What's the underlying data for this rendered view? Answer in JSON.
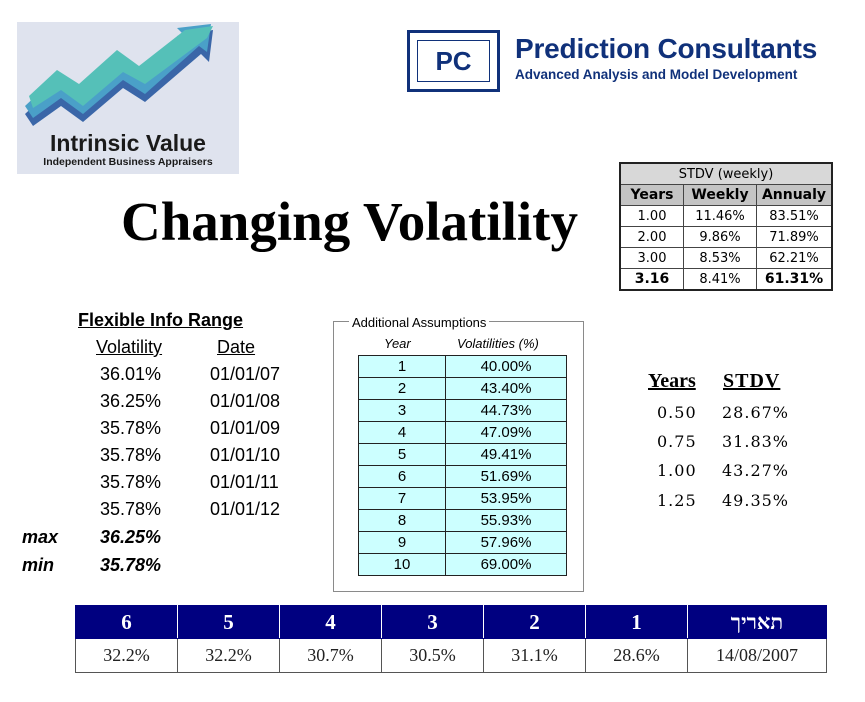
{
  "logo_intrinsic": {
    "title": "Intrinsic Value",
    "subtitle": "Independent Business Appraisers"
  },
  "logo_pc": {
    "mark": "PC",
    "name": "Prediction Consultants",
    "tagline": "Advanced Analysis and Model Development"
  },
  "title": "Changing Volatility",
  "stdv_weekly": {
    "caption": "STDV (weekly)",
    "headers": [
      "Years",
      "Weekly",
      "Annualy"
    ],
    "rows": [
      [
        "1.00",
        "11.46%",
        "83.51%"
      ],
      [
        "2.00",
        "9.86%",
        "71.89%"
      ],
      [
        "3.00",
        "8.53%",
        "62.21%"
      ],
      [
        "3.16",
        "8.41%",
        "61.31%"
      ]
    ]
  },
  "flexible_info": {
    "title": "Flexible Info Range",
    "volatility_header": "Volatility",
    "date_header": "Date",
    "rows": [
      {
        "vol": "36.01%",
        "date": "01/01/07"
      },
      {
        "vol": "36.25%",
        "date": "01/01/08"
      },
      {
        "vol": "35.78%",
        "date": "01/01/09"
      },
      {
        "vol": "35.78%",
        "date": "01/01/10"
      },
      {
        "vol": "35.78%",
        "date": "01/01/11"
      },
      {
        "vol": "35.78%",
        "date": "01/01/12"
      }
    ],
    "max_label": "max",
    "max_value": "36.25%",
    "min_label": "min",
    "min_value": "35.78%"
  },
  "assumptions": {
    "title": "Additional Assumptions",
    "year_header": "Year",
    "vol_header": "Volatilities (%)",
    "rows": [
      [
        "1",
        "40.00%"
      ],
      [
        "2",
        "43.40%"
      ],
      [
        "3",
        "44.73%"
      ],
      [
        "4",
        "47.09%"
      ],
      [
        "5",
        "49.41%"
      ],
      [
        "6",
        "51.69%"
      ],
      [
        "7",
        "53.95%"
      ],
      [
        "8",
        "55.93%"
      ],
      [
        "9",
        "57.96%"
      ],
      [
        "10",
        "69.00%"
      ]
    ]
  },
  "years_stdv": {
    "years_header": "Years",
    "stdv_header": "STDV",
    "rows": [
      [
        "0.50",
        "28.67%"
      ],
      [
        "0.75",
        "31.83%"
      ],
      [
        "1.00",
        "43.27%"
      ],
      [
        "1.25",
        "49.35%"
      ]
    ]
  },
  "bottom_table": {
    "headers": [
      "6",
      "5",
      "4",
      "3",
      "2",
      "1",
      "תאריך"
    ],
    "values": [
      "32.2%",
      "32.2%",
      "30.7%",
      "30.5%",
      "31.1%",
      "28.6%",
      "14/08/2007"
    ]
  },
  "colors": {
    "brand_blue": "#10317a",
    "header_navy": "#000080",
    "assumption_cell": "#ccffff"
  }
}
